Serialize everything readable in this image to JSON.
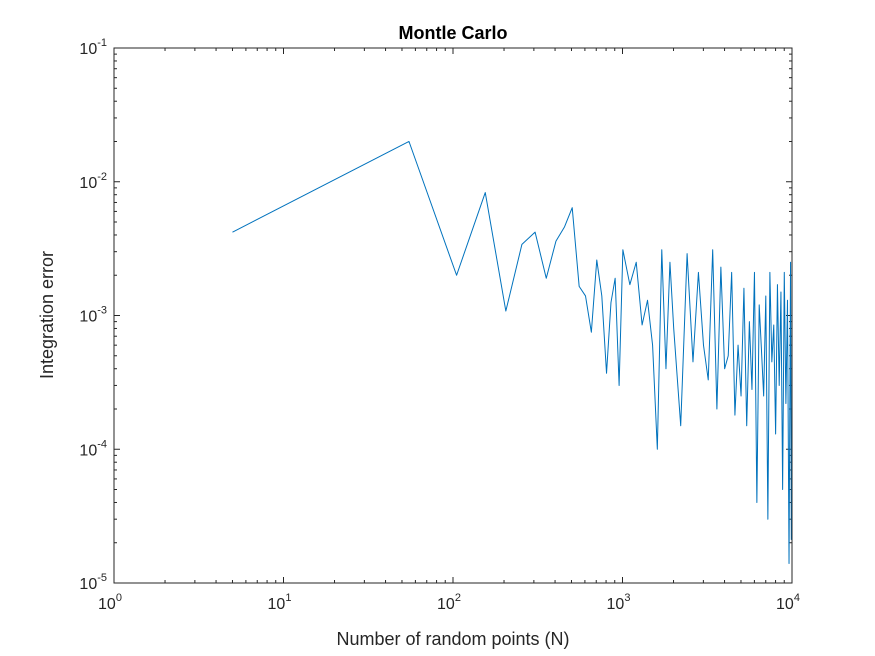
{
  "chart_data": {
    "type": "line",
    "title": "Montle Carlo",
    "xlabel": "Number of random points (N)",
    "ylabel": "Integration error",
    "x_scale": "log",
    "y_scale": "log",
    "xlim": [
      1,
      10000
    ],
    "ylim": [
      1e-05,
      0.1
    ],
    "grid": false,
    "legend": "none",
    "line_color": "#0072bd",
    "x_ticks": [
      {
        "base": "10",
        "exp": "0"
      },
      {
        "base": "10",
        "exp": "1"
      },
      {
        "base": "10",
        "exp": "2"
      },
      {
        "base": "10",
        "exp": "3"
      },
      {
        "base": "10",
        "exp": "4"
      }
    ],
    "y_ticks": [
      {
        "base": "10",
        "exp": "-5"
      },
      {
        "base": "10",
        "exp": "-4"
      },
      {
        "base": "10",
        "exp": "-3"
      },
      {
        "base": "10",
        "exp": "-2"
      },
      {
        "base": "10",
        "exp": "-1"
      }
    ],
    "series": [
      {
        "x": [
          5,
          55,
          105,
          155,
          205,
          255,
          305,
          355,
          405,
          455,
          505,
          555,
          605,
          655,
          705,
          755,
          805,
          855,
          905,
          955,
          1005,
          1105,
          1205,
          1305,
          1405,
          1505,
          1605,
          1705,
          1805,
          1905,
          2005,
          2205,
          2405,
          2605,
          2805,
          3005,
          3205,
          3405,
          3605,
          3805,
          4005,
          4205,
          4405,
          4605,
          4805,
          5005,
          5205,
          5405,
          5605,
          5805,
          6005,
          6205,
          6405,
          6605,
          6805,
          7005,
          7205,
          7405,
          7605,
          7805,
          8005,
          8205,
          8405,
          8605,
          8805,
          9005,
          9205,
          9405,
          9605,
          9805,
          9905
        ],
        "y": [
          0.0042,
          0.02,
          0.002,
          0.0083,
          0.00108,
          0.0034,
          0.0042,
          0.0019,
          0.0036,
          0.0046,
          0.0064,
          0.00165,
          0.0014,
          0.00075,
          0.0026,
          0.0014,
          0.00037,
          0.00125,
          0.0019,
          0.0003,
          0.0031,
          0.0017,
          0.0025,
          0.00085,
          0.0013,
          0.0006,
          0.0001,
          0.0031,
          0.0004,
          0.0025,
          0.0008,
          0.00015,
          0.0029,
          0.00045,
          0.0021,
          0.0006,
          0.00033,
          0.0031,
          0.0002,
          0.0023,
          0.0004,
          0.0005,
          0.0021,
          0.00018,
          0.0006,
          0.00025,
          0.0016,
          0.00015,
          0.0009,
          0.00028,
          0.0021,
          4e-05,
          0.0012,
          0.00055,
          0.00025,
          0.0014,
          3e-05,
          0.0021,
          0.00045,
          0.00085,
          0.00013,
          0.0017,
          0.0003,
          0.0015,
          5e-05,
          0.0021,
          0.00022,
          0.0013,
          1.4e-05,
          0.0025,
          2.1e-05
        ]
      }
    ]
  }
}
